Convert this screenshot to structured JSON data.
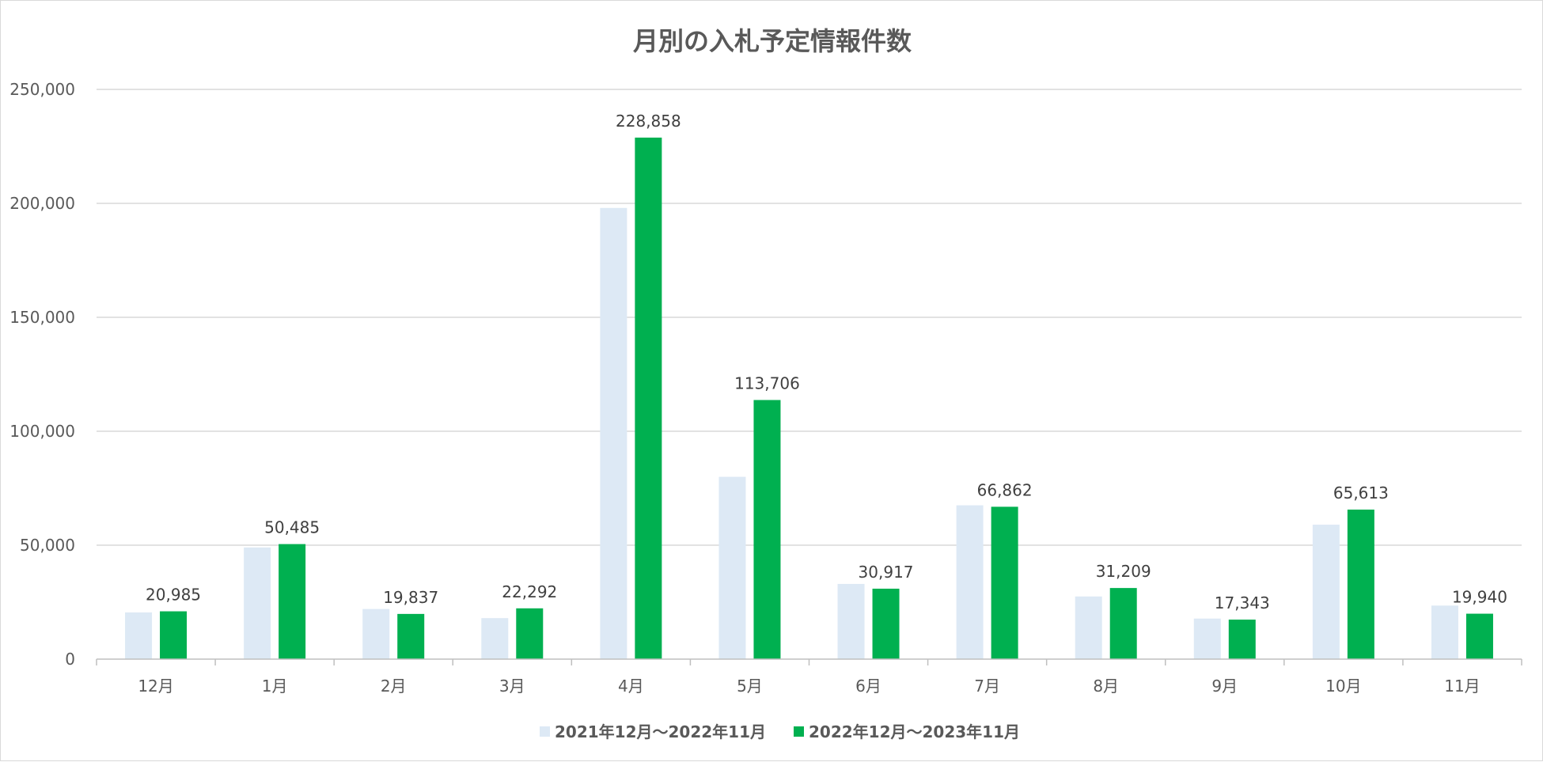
{
  "chart_data": {
    "type": "bar",
    "title": "月別の入札予定情報件数",
    "xlabel": "",
    "ylabel": "",
    "ylim": [
      0,
      250000
    ],
    "yticks": [
      "0",
      "50,000",
      "100,000",
      "150,000",
      "200,000",
      "250,000"
    ],
    "ytick_values": [
      0,
      50000,
      100000,
      150000,
      200000,
      250000
    ],
    "grid": true,
    "legend_position": "bottom",
    "categories": [
      "12月",
      "1月",
      "2月",
      "3月",
      "4月",
      "5月",
      "6月",
      "7月",
      "8月",
      "9月",
      "10月",
      "11月"
    ],
    "series": [
      {
        "name": "2021年12月～2022年11月",
        "color": "#dde9f5",
        "values": [
          20500,
          49000,
          22000,
          18000,
          198000,
          80000,
          33000,
          67500,
          27500,
          17800,
          59000,
          23500
        ],
        "labels": []
      },
      {
        "name": "2022年12月～2023年11月",
        "color": "#00b050",
        "values": [
          20985,
          50485,
          19837,
          22292,
          228858,
          113706,
          30917,
          66862,
          31209,
          17343,
          65613,
          19940
        ],
        "labels": [
          "20,985",
          "50,485",
          "19,837",
          "22,292",
          "228,858",
          "113,706",
          "30,917",
          "66,862",
          "31,209",
          "17,343",
          "65,613",
          "19,940"
        ]
      }
    ]
  }
}
